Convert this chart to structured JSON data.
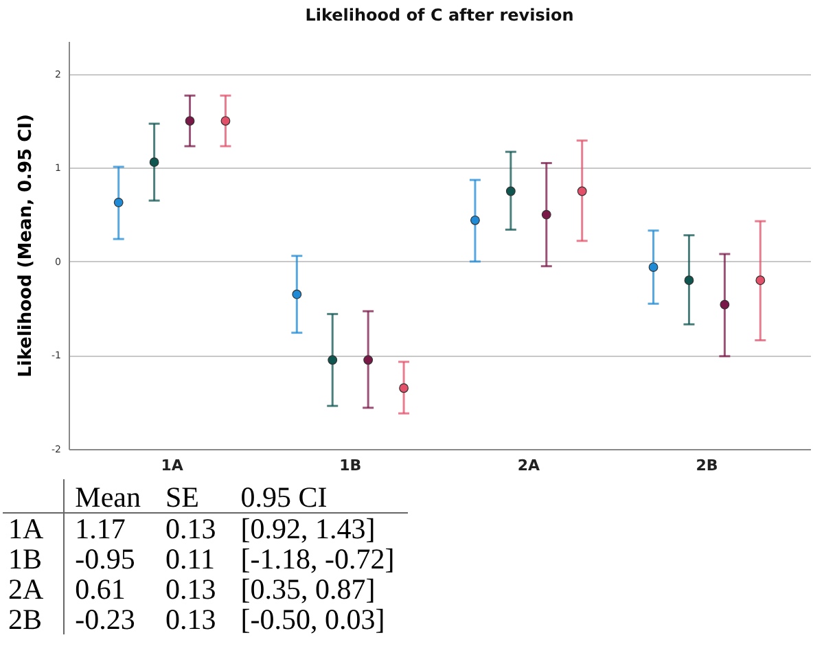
{
  "chart_data": {
    "type": "scatter",
    "title": "Likelihood of C after revision",
    "ylabel": "Likelihood (Mean, 0.95 CI)",
    "categories": [
      "1A",
      "1B",
      "2A",
      "2B"
    ],
    "ylim": [
      -2,
      2.35
    ],
    "yticks": [
      -2,
      -1,
      0,
      1,
      2
    ],
    "grid": "y",
    "marker": "circle",
    "legend": false,
    "series": [
      {
        "color": "#1f8ad6",
        "values": [
          0.63,
          -0.35,
          0.44,
          -0.06
        ],
        "errors": [
          [
            0.24,
            1.01
          ],
          [
            -0.76,
            0.06
          ],
          [
            0.0,
            0.87
          ],
          [
            -0.45,
            0.33
          ]
        ]
      },
      {
        "color": "#0f5550",
        "values": [
          1.06,
          -1.05,
          0.75,
          -0.2
        ],
        "errors": [
          [
            0.65,
            1.47
          ],
          [
            -1.54,
            -0.56
          ],
          [
            0.34,
            1.17
          ],
          [
            -0.67,
            0.28
          ]
        ]
      },
      {
        "color": "#7a1848",
        "values": [
          1.5,
          -1.05,
          0.5,
          -0.46
        ],
        "errors": [
          [
            1.23,
            1.77
          ],
          [
            -1.56,
            -0.53
          ],
          [
            -0.05,
            1.05
          ],
          [
            -1.01,
            0.08
          ]
        ]
      },
      {
        "color": "#e2506a",
        "values": [
          1.5,
          -1.35,
          0.75,
          -0.2
        ],
        "errors": [
          [
            1.23,
            1.77
          ],
          [
            -1.62,
            -1.07
          ],
          [
            0.22,
            1.29
          ],
          [
            -0.84,
            0.43
          ]
        ]
      }
    ],
    "annotations": [
      "Mean",
      "SE",
      "0.95 CI",
      "1A",
      "1.17",
      "0.13",
      "[0.92, 1.43]",
      "1B",
      "-0.95",
      "0.11",
      "[-1.18, -0.72]",
      "2A",
      "0.61",
      "0.13",
      "[0.35, 0.87]",
      "2B",
      "-0.23",
      "0.13",
      "[-0.50, 0.03]"
    ]
  }
}
